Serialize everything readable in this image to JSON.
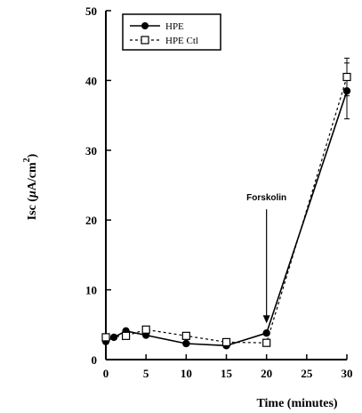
{
  "chart_data": {
    "type": "line",
    "xlabel": "Time (minutes)",
    "ylabel_prefix": "Isc (",
    "ylabel_mu": "μ",
    "ylabel_unit": "A/cm",
    "ylabel_exp": "2",
    "ylabel_suffix": ")",
    "xlim": [
      0,
      30
    ],
    "ylim": [
      0,
      50
    ],
    "xticks": [
      0,
      5,
      10,
      15,
      20,
      25,
      30
    ],
    "yticks": [
      0,
      10,
      20,
      30,
      40,
      50
    ],
    "grid": false,
    "legend_position": "top-left",
    "series": [
      {
        "name": "HPE",
        "line_style": "solid",
        "marker": "filled-circle",
        "color": "#000000",
        "x": [
          0,
          1,
          2.5,
          5,
          10,
          15,
          20,
          30
        ],
        "y": [
          2.6,
          3.2,
          4.1,
          3.5,
          2.3,
          2.0,
          3.8,
          38.5
        ],
        "err": [
          0,
          0,
          0,
          0,
          0,
          0,
          0,
          4.0
        ]
      },
      {
        "name": "HPE Ctl",
        "line_style": "dashed",
        "marker": "open-square",
        "color": "#000000",
        "x": [
          0,
          2.5,
          5,
          10,
          15,
          20,
          30
        ],
        "y": [
          3.2,
          3.4,
          4.3,
          3.4,
          2.5,
          2.4,
          40.5
        ],
        "err": [
          0,
          0,
          0,
          0.4,
          0,
          0,
          2.7
        ]
      }
    ],
    "annotations": [
      {
        "text": "Forskolin",
        "x": 20,
        "y_top": 20,
        "y_tip": 5.2
      }
    ]
  }
}
